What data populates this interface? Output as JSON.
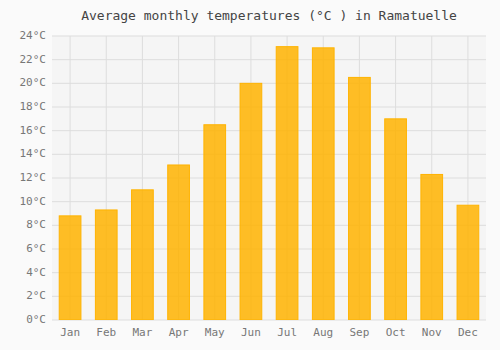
{
  "chart_data": {
    "type": "bar",
    "title": "Average monthly temperatures (°C ) in Ramatuelle",
    "categories": [
      "Jan",
      "Feb",
      "Mar",
      "Apr",
      "May",
      "Jun",
      "Jul",
      "Aug",
      "Sep",
      "Oct",
      "Nov",
      "Dec"
    ],
    "values": [
      8.8,
      9.3,
      11.0,
      13.1,
      16.5,
      20.0,
      23.1,
      23.0,
      20.5,
      17.0,
      12.3,
      9.7
    ],
    "color": "#FFB300",
    "ylim": [
      0,
      24
    ],
    "yticks": [
      {
        "value": 0,
        "label": "0°C"
      },
      {
        "value": 2,
        "label": "2°C"
      },
      {
        "value": 4,
        "label": "4°C"
      },
      {
        "value": 6,
        "label": "6°C"
      },
      {
        "value": 8,
        "label": "8°C"
      },
      {
        "value": 10,
        "label": "10°C"
      },
      {
        "value": 12,
        "label": "12°C"
      },
      {
        "value": 14,
        "label": "14°C"
      },
      {
        "value": 16,
        "label": "16°C"
      },
      {
        "value": 18,
        "label": "18°C"
      },
      {
        "value": 20,
        "label": "20°C"
      },
      {
        "value": 22,
        "label": "22°C"
      },
      {
        "value": 24,
        "label": "24°C"
      }
    ],
    "grid": true
  }
}
